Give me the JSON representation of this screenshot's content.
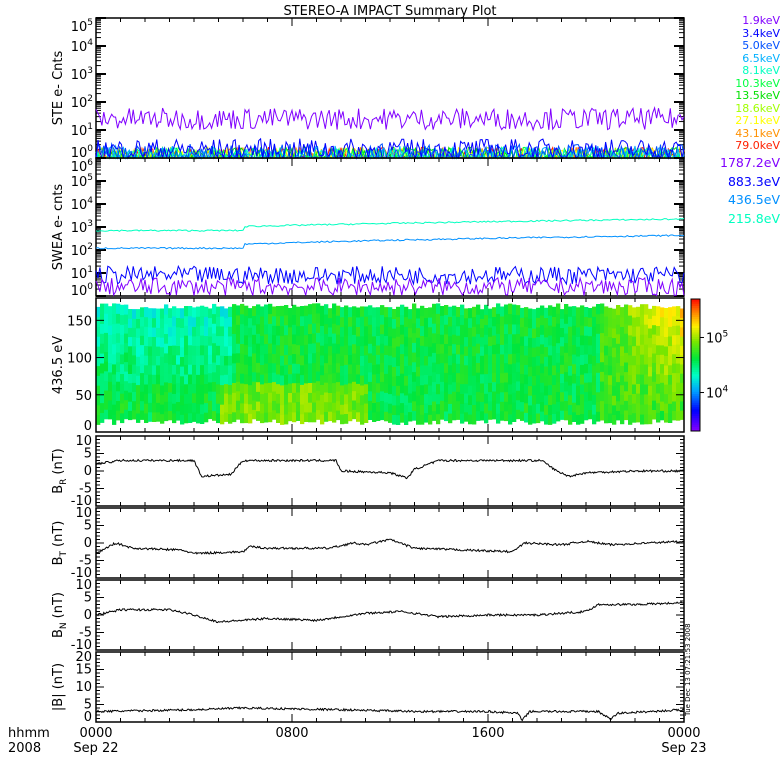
{
  "title": "STEREO-A IMPACT Summary Plot",
  "timestamp": "Tue Dec 13 07:21:53 2008",
  "chart_data": [
    {
      "type": "line",
      "name": "ste",
      "ylabel": "STE e- Cnts",
      "yscale": "log",
      "ylim": [
        1,
        100000
      ],
      "yticks": [
        "10^0",
        "10^1",
        "10^2",
        "10^3",
        "10^4",
        "10^5"
      ],
      "series": [
        {
          "name": "1.9keV",
          "color": "#8000ff",
          "level": 25
        },
        {
          "name": "3.4keV",
          "color": "#0000ff",
          "level": 2
        },
        {
          "name": "5.0keV",
          "color": "#0050ff",
          "level": 1.3
        },
        {
          "name": "6.5keV",
          "color": "#00b0ff",
          "level": 1.1
        },
        {
          "name": "8.1keV",
          "color": "#00ffc0",
          "level": 1
        },
        {
          "name": "10.3keV",
          "color": "#00ff40",
          "level": 1
        },
        {
          "name": "13.5keV",
          "color": "#00e000",
          "level": 1
        },
        {
          "name": "18.6keV",
          "color": "#a0ff00",
          "level": 1
        },
        {
          "name": "27.1keV",
          "color": "#ffff00",
          "level": 1
        },
        {
          "name": "43.1keV",
          "color": "#ff9000",
          "level": 1
        },
        {
          "name": "79.0keV",
          "color": "#ff2000",
          "level": 1
        }
      ]
    },
    {
      "type": "line",
      "name": "swea",
      "ylabel": "SWEA e- cnts",
      "yscale": "log",
      "ylim": [
        1,
        1000000
      ],
      "yticks": [
        "10^0",
        "10^1",
        "10^2",
        "10^3",
        "10^4",
        "10^5",
        "10^6"
      ],
      "series": [
        {
          "name": "1787.2eV",
          "color": "#8000ff",
          "level": 2.5
        },
        {
          "name": "883.3eV",
          "color": "#0000ff",
          "level": 8
        },
        {
          "name": "436.5eV",
          "color": "#0090ff",
          "level": 120,
          "later_level": 400
        },
        {
          "name": "215.8eV",
          "color": "#00ffc0",
          "level": 700,
          "later_level": 2000
        }
      ]
    },
    {
      "type": "heatmap",
      "name": "pad",
      "ylabel": "436.5 eV",
      "ylim": [
        0,
        180
      ],
      "yticks": [
        "0",
        "50",
        "100",
        "150"
      ],
      "colorbar_ticks": [
        "10^5",
        "10^4"
      ],
      "colorbar_range": [
        2000,
        500000
      ]
    },
    {
      "type": "line",
      "name": "br",
      "ylabel": "B_R (nT)",
      "ylim": [
        -10,
        10
      ],
      "yticks": [
        "-10",
        "-5",
        "0",
        "5",
        "10"
      ],
      "points": [
        [
          0,
          2
        ],
        [
          1,
          3
        ],
        [
          4,
          3
        ],
        [
          4.3,
          -1.5
        ],
        [
          5.5,
          -1
        ],
        [
          6,
          3
        ],
        [
          9.8,
          3
        ],
        [
          10,
          0
        ],
        [
          12,
          -0.5
        ],
        [
          12.7,
          -2
        ],
        [
          13,
          0.5
        ],
        [
          14,
          3
        ],
        [
          18.2,
          3
        ],
        [
          18.8,
          0
        ],
        [
          19.3,
          -1.5
        ],
        [
          20,
          -0.5
        ],
        [
          22,
          0
        ],
        [
          24,
          0
        ]
      ]
    },
    {
      "type": "line",
      "name": "bt",
      "ylabel": "B_T (nT)",
      "ylim": [
        -10,
        10
      ],
      "yticks": [
        "-10",
        "-5",
        "0",
        "5",
        "10"
      ],
      "points": [
        [
          0,
          -3
        ],
        [
          0.8,
          0
        ],
        [
          1.5,
          -1.5
        ],
        [
          3.5,
          -2
        ],
        [
          4,
          -3
        ],
        [
          6,
          -2.5
        ],
        [
          6.3,
          -1
        ],
        [
          7,
          -1.5
        ],
        [
          9.5,
          -1.5
        ],
        [
          10.5,
          0
        ],
        [
          11,
          -0.5
        ],
        [
          12,
          1
        ],
        [
          13,
          -1.5
        ],
        [
          17,
          -2.5
        ],
        [
          17.5,
          0
        ],
        [
          19,
          -0.5
        ],
        [
          20,
          0.5
        ],
        [
          21,
          -0.5
        ],
        [
          22.5,
          0
        ],
        [
          24,
          0.5
        ]
      ]
    },
    {
      "type": "line",
      "name": "bn",
      "ylabel": "B_N (nT)",
      "ylim": [
        -10,
        10
      ],
      "yticks": [
        "-10",
        "-5",
        "0",
        "5",
        "10"
      ],
      "points": [
        [
          0,
          0
        ],
        [
          1,
          1.5
        ],
        [
          3,
          1.5
        ],
        [
          4,
          0
        ],
        [
          5,
          -2
        ],
        [
          7,
          -1
        ],
        [
          9,
          -1.5
        ],
        [
          11,
          0.5
        ],
        [
          12.5,
          1
        ],
        [
          14,
          -0.5
        ],
        [
          16,
          0
        ],
        [
          18,
          0
        ],
        [
          20,
          1
        ],
        [
          20.5,
          3
        ],
        [
          22,
          3
        ],
        [
          24,
          3.5
        ]
      ]
    },
    {
      "type": "line",
      "name": "bmag",
      "ylabel": "|B| (nT)",
      "ylim": [
        0,
        20
      ],
      "yticks": [
        "0",
        "5",
        "10",
        "15",
        "20"
      ],
      "points": [
        [
          0,
          3
        ],
        [
          4,
          3.5
        ],
        [
          6,
          4
        ],
        [
          10,
          3.5
        ],
        [
          13,
          3
        ],
        [
          16,
          3
        ],
        [
          17.2,
          2.5
        ],
        [
          17.4,
          0.5
        ],
        [
          17.7,
          3
        ],
        [
          20.5,
          3
        ],
        [
          21,
          0.8
        ],
        [
          21.3,
          2.5
        ],
        [
          24,
          3.5
        ]
      ]
    }
  ],
  "xaxis": {
    "hhmm": "hhmm",
    "year": "2008",
    "ticks": [
      {
        "label": "0000",
        "sub": "Sep 22"
      },
      {
        "label": "0800",
        "sub": ""
      },
      {
        "label": "1600",
        "sub": ""
      },
      {
        "label": "0000",
        "sub": "Sep 23"
      }
    ]
  },
  "ylabels": {
    "ste": "STE e- Cnts",
    "swea": "SWEA e- cnts",
    "pad": "436.5 eV",
    "br": "B",
    "br_sub": "R",
    "bt": "B",
    "bt_sub": "T",
    "bn": "B",
    "bn_sub": "N",
    "bunit": "(nT)",
    "bmag": "|B| (nT)"
  }
}
